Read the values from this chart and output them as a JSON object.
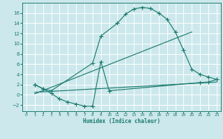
{
  "xlabel": "Humidex (Indice chaleur)",
  "bg_color": "#cce8ec",
  "grid_color": "#ffffff",
  "line_color": "#1a7a6e",
  "xlim": [
    -0.5,
    23.5
  ],
  "ylim": [
    -3.2,
    18.0
  ],
  "xticks": [
    0,
    1,
    2,
    3,
    4,
    5,
    6,
    7,
    8,
    9,
    10,
    11,
    12,
    13,
    14,
    15,
    16,
    17,
    18,
    19,
    20,
    21,
    22,
    23
  ],
  "yticks": [
    -2,
    0,
    2,
    4,
    6,
    8,
    10,
    12,
    14,
    16
  ],
  "line1_x": [
    1,
    2,
    3,
    8,
    9,
    11,
    12,
    13,
    14,
    15,
    16,
    17,
    18,
    19,
    20,
    21,
    22,
    23
  ],
  "line1_y": [
    2.0,
    1.2,
    0.8,
    6.2,
    11.5,
    14.0,
    15.8,
    16.8,
    17.1,
    16.9,
    16.0,
    14.8,
    12.3,
    8.7,
    5.0,
    4.0,
    3.5,
    3.0
  ],
  "line2_x": [
    1,
    2,
    3,
    4,
    5,
    6,
    7,
    8,
    9,
    10,
    21,
    22,
    23
  ],
  "line2_y": [
    2.0,
    1.2,
    0.3,
    -0.8,
    -1.4,
    -1.8,
    -2.2,
    -2.2,
    6.5,
    0.8,
    2.4,
    2.5,
    3.0
  ],
  "line3_x": [
    1,
    23
  ],
  "line3_y": [
    0.5,
    2.5
  ],
  "line4_x": [
    1,
    20
  ],
  "line4_y": [
    0.2,
    12.3
  ]
}
